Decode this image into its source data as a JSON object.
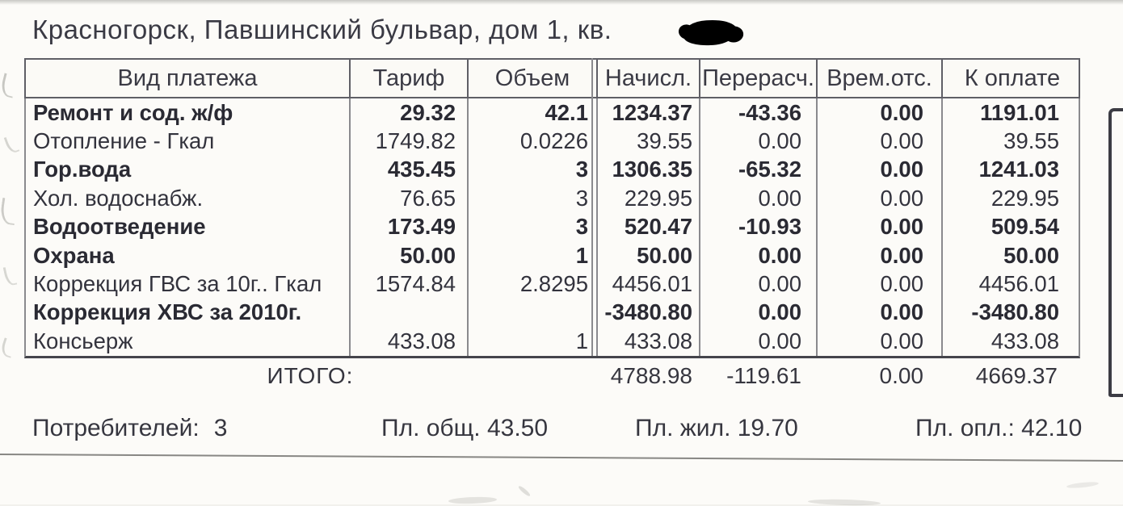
{
  "header": {
    "address": "Красногорск, Павшинский бульвар, дом 1, кв."
  },
  "receipt_table": {
    "headers": {
      "payment_type": "Вид платежа",
      "tariff": "Тариф",
      "volume": "Объем",
      "accrued": "Начисл.",
      "recalc": "Перерасч.",
      "temp_absence": "Врем.отс.",
      "due": "К оплате"
    },
    "rows": [
      {
        "name": "Ремонт и сод. ж/ф",
        "tariff": "29.32",
        "volume": "42.1",
        "accrued": "1234.37",
        "recalc": "-43.36",
        "absence": "0.00",
        "due": "1191.01"
      },
      {
        "name": "Отопление - Гкал",
        "tariff": "1749.82",
        "volume": "0.0226",
        "accrued": "39.55",
        "recalc": "0.00",
        "absence": "0.00",
        "due": "39.55"
      },
      {
        "name": "Гор.вода",
        "tariff": "435.45",
        "volume": "3",
        "accrued": "1306.35",
        "recalc": "-65.32",
        "absence": "0.00",
        "due": "1241.03"
      },
      {
        "name": "Хол. водоснабж.",
        "tariff": "76.65",
        "volume": "3",
        "accrued": "229.95",
        "recalc": "0.00",
        "absence": "0.00",
        "due": "229.95"
      },
      {
        "name": "Водоотведение",
        "tariff": "173.49",
        "volume": "3",
        "accrued": "520.47",
        "recalc": "-10.93",
        "absence": "0.00",
        "due": "509.54"
      },
      {
        "name": "Охрана",
        "tariff": "50.00",
        "volume": "1",
        "accrued": "50.00",
        "recalc": "0.00",
        "absence": "0.00",
        "due": "50.00"
      },
      {
        "name": "Коррекция ГВС за 10г.. Гкал",
        "tariff": "1574.84",
        "volume": "2.8295",
        "accrued": "4456.01",
        "recalc": "0.00",
        "absence": "0.00",
        "due": "4456.01"
      },
      {
        "name": "Коррекция ХВС за 2010г.",
        "tariff": "",
        "volume": "",
        "accrued": "-3480.80",
        "recalc": "0.00",
        "absence": "0.00",
        "due": "-3480.80"
      },
      {
        "name": "Консьерж",
        "tariff": "433.08",
        "volume": "1",
        "accrued": "433.08",
        "recalc": "0.00",
        "absence": "0.00",
        "due": "433.08"
      }
    ],
    "totals": {
      "label": "ИТОГО:",
      "accrued": "4788.98",
      "recalc": "-119.61",
      "absence": "0.00",
      "due": "4669.37"
    }
  },
  "footer": {
    "consumers_label": "Потребителей:",
    "consumers_value": "3",
    "total_area": "Пл. общ. 43.50",
    "living_area": "Пл. жил. 19.70",
    "paid_area": "Пл. опл.: 42.10"
  }
}
